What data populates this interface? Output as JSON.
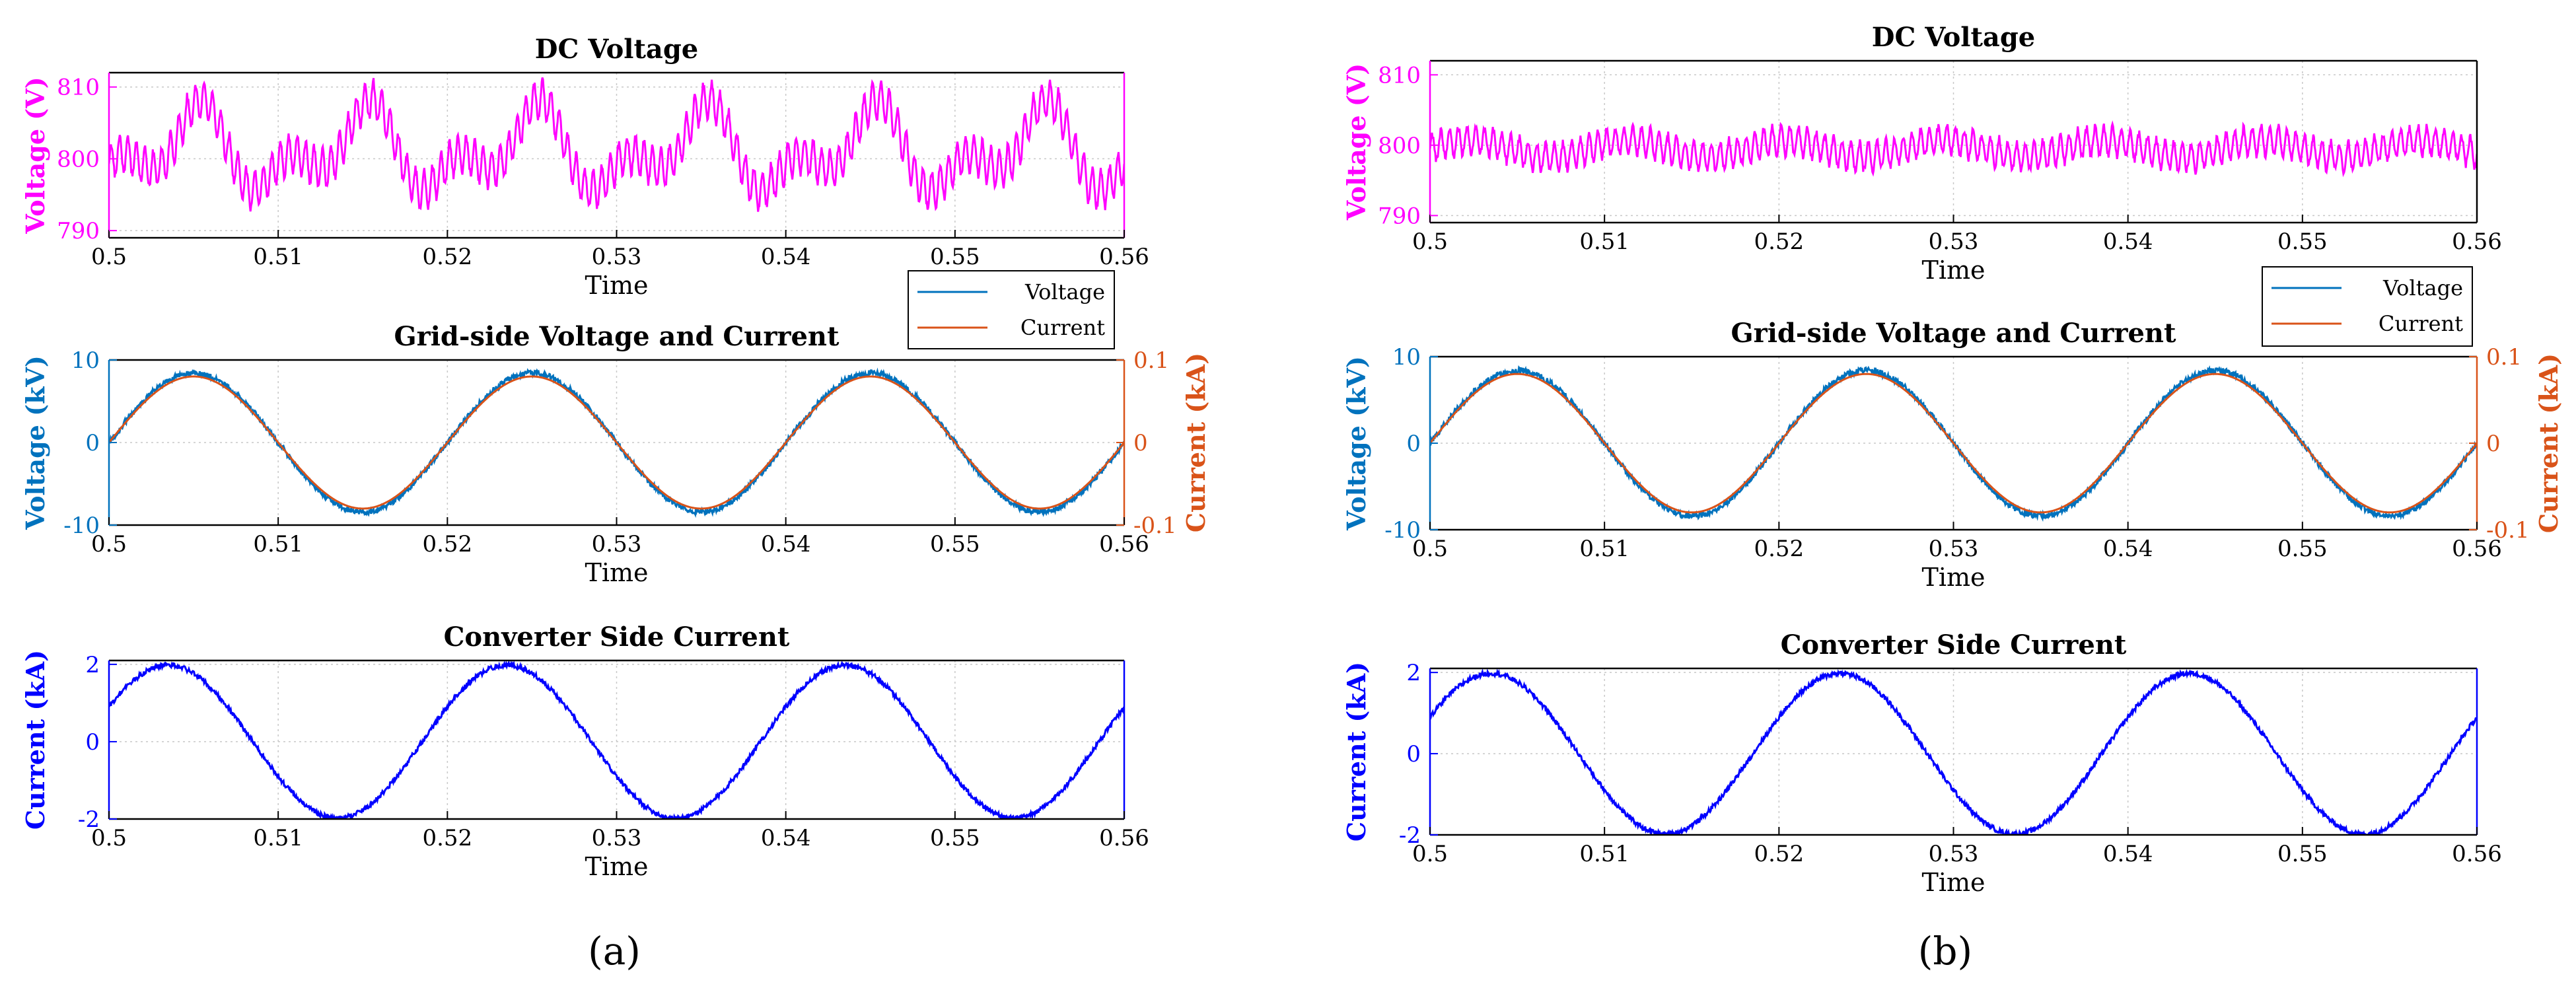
{
  "figure": {
    "label_a": "(a)",
    "label_b": "(b)"
  },
  "colors": {
    "magenta": "#ff00ff",
    "voltage": "#0072bd",
    "current": "#d95319",
    "converter": "#0000ff",
    "grid": "#c8c8c8"
  },
  "chart_data": [
    {
      "id": "a-dc",
      "panel": "a",
      "type": "line",
      "title": "DC Voltage",
      "xlabel": "Time",
      "ylabel": "Voltage (V)",
      "xlim": [
        0.5,
        0.56
      ],
      "ylim": [
        789,
        812
      ],
      "xticks": [
        "0.5",
        "0.51",
        "0.52",
        "0.53",
        "0.54",
        "0.55",
        "0.56"
      ],
      "yticks": [
        790,
        800,
        810
      ],
      "mirror_right_axis": true,
      "series": [
        {
          "name": "DC Voltage",
          "color": "magenta",
          "generator": {
            "kind": "dc_ripple",
            "mean": 801,
            "amp": 7.5,
            "period": 0.01,
            "ripple_amp": 3.2,
            "ripple_freq": 2000
          }
        }
      ]
    },
    {
      "id": "a-grid",
      "panel": "a",
      "type": "line",
      "title": "Grid-side Voltage and Current",
      "xlabel": "Time",
      "ylabel": "Voltage (kV)",
      "ylabel_right": "Current (kA)",
      "xlim": [
        0.5,
        0.56
      ],
      "ylim": [
        -10,
        10
      ],
      "ylim_right": [
        -0.1,
        0.1
      ],
      "xticks": [
        "0.5",
        "0.51",
        "0.52",
        "0.53",
        "0.54",
        "0.55",
        "0.56"
      ],
      "yticks": [
        -10,
        0,
        10
      ],
      "yticks_right": [
        "-0.1",
        "0",
        "0.1"
      ],
      "legend": {
        "position": "top-right",
        "entries": [
          "Voltage",
          "Current"
        ]
      },
      "series": [
        {
          "name": "Voltage",
          "color": "voltage",
          "axis": "left",
          "generator": {
            "kind": "sine",
            "amp": 8.4,
            "freq": 50,
            "phase": 0,
            "jitter": 0.35
          }
        },
        {
          "name": "Current",
          "color": "current",
          "axis": "right",
          "generator": {
            "kind": "sine",
            "amp": 0.08,
            "freq": 50,
            "phase": 0,
            "jitter": 0
          }
        }
      ]
    },
    {
      "id": "a-conv",
      "panel": "a",
      "type": "line",
      "title": "Converter Side Current",
      "xlabel": "Time",
      "ylabel": "Current (kA)",
      "xlim": [
        0.5,
        0.56
      ],
      "ylim": [
        -2,
        2.1
      ],
      "xticks": [
        "0.5",
        "0.51",
        "0.52",
        "0.53",
        "0.54",
        "0.55",
        "0.56"
      ],
      "yticks": [
        -2,
        0,
        2
      ],
      "mirror_right_axis": true,
      "series": [
        {
          "name": "Converter Side Current",
          "color": "converter",
          "generator": {
            "kind": "sine",
            "amp": 1.98,
            "freq": 50,
            "phase": 0.47,
            "jitter": 0.06
          }
        }
      ]
    },
    {
      "id": "b-dc",
      "panel": "b",
      "type": "line",
      "title": "DC Voltage",
      "xlabel": "Time",
      "ylabel": "Voltage (V)",
      "xlim": [
        0.5,
        0.56
      ],
      "ylim": [
        789,
        812
      ],
      "xticks": [
        "0.5",
        "0.51",
        "0.52",
        "0.53",
        "0.54",
        "0.55",
        "0.56"
      ],
      "yticks": [
        790,
        800,
        810
      ],
      "series": [
        {
          "name": "DC Voltage",
          "color": "magenta",
          "generator": {
            "kind": "dc_noise",
            "mean": 799.5,
            "amp": 1.2,
            "ripple_amp": 2.6,
            "ripple_freq": 2000
          }
        }
      ]
    },
    {
      "id": "b-grid",
      "panel": "b",
      "type": "line",
      "title": "Grid-side Voltage and Current",
      "xlabel": "Time",
      "ylabel": "Voltage (kV)",
      "ylabel_right": "Current (kA)",
      "xlim": [
        0.5,
        0.56
      ],
      "ylim": [
        -10,
        10
      ],
      "ylim_right": [
        -0.1,
        0.1
      ],
      "xticks": [
        "0.5",
        "0.51",
        "0.52",
        "0.53",
        "0.54",
        "0.55",
        "0.56"
      ],
      "yticks": [
        -10,
        0,
        10
      ],
      "yticks_right": [
        "-0.1",
        "0",
        "0.1"
      ],
      "legend": {
        "position": "top-right",
        "entries": [
          "Voltage",
          "Current"
        ]
      },
      "series": [
        {
          "name": "Voltage",
          "color": "voltage",
          "axis": "left",
          "generator": {
            "kind": "sine",
            "amp": 8.4,
            "freq": 50,
            "phase": 0,
            "jitter": 0.35
          }
        },
        {
          "name": "Current",
          "color": "current",
          "axis": "right",
          "generator": {
            "kind": "sine",
            "amp": 0.08,
            "freq": 50,
            "phase": 0,
            "jitter": 0
          }
        }
      ]
    },
    {
      "id": "b-conv",
      "panel": "b",
      "type": "line",
      "title": "Converter Side Current",
      "xlabel": "Time",
      "ylabel": "Current (kA)",
      "xlim": [
        0.5,
        0.56
      ],
      "ylim": [
        -2,
        2.1
      ],
      "xticks": [
        "0.5",
        "0.51",
        "0.52",
        "0.53",
        "0.54",
        "0.55",
        "0.56"
      ],
      "yticks": [
        -2,
        0,
        2
      ],
      "mirror_right_axis": true,
      "series": [
        {
          "name": "Converter Side Current",
          "color": "converter",
          "generator": {
            "kind": "sine",
            "amp": 1.98,
            "freq": 50,
            "phase": 0.47,
            "jitter": 0.06
          }
        }
      ]
    }
  ]
}
